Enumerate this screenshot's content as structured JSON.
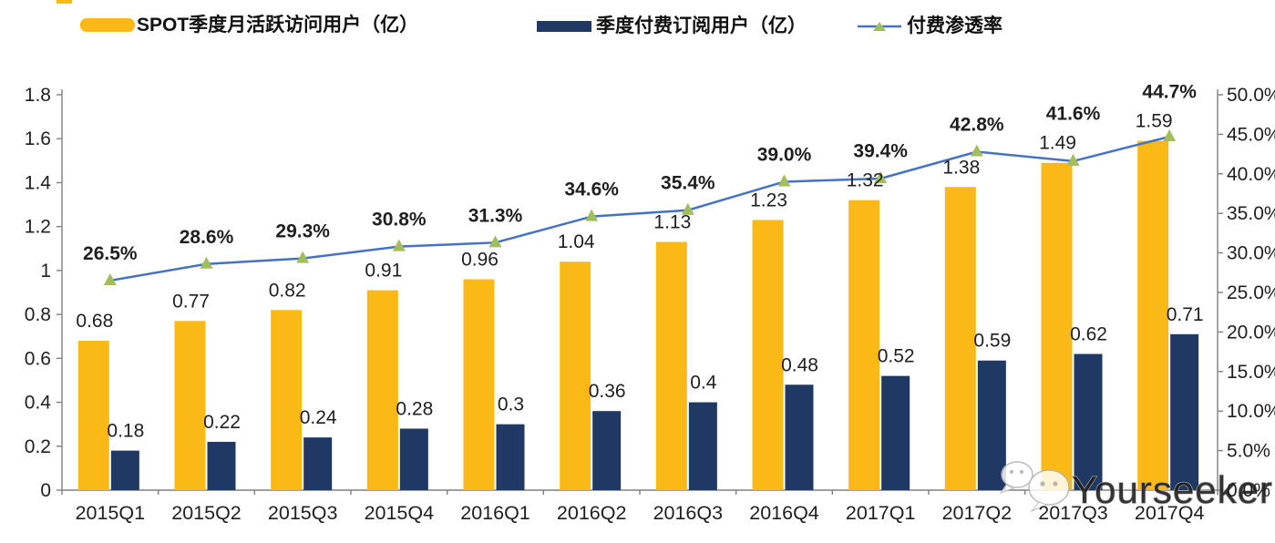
{
  "legend": [
    {
      "label": "SPOT季度月活跃访问用户（亿）",
      "swatch": "yellow-bar"
    },
    {
      "label": "季度付费订阅用户（亿）",
      "swatch": "navy-bar"
    },
    {
      "label": "付费渗透率",
      "swatch": "line-with-triangle-marker"
    }
  ],
  "colors": {
    "mau": "#FBB918",
    "paid": "#1F3864",
    "line": "#4472C4",
    "marker": "#A2BE5B",
    "axis": "#808080",
    "text": "#1f1f1f"
  },
  "chart_data": {
    "type": "bar",
    "subtype": "grouped-bars-with-line-combo",
    "title": "",
    "xlabel": "",
    "ylabel_left": "",
    "ylabel_right": "",
    "grid": false,
    "legend_position": "top",
    "categories": [
      "2015Q1",
      "2015Q2",
      "2015Q3",
      "2015Q4",
      "2016Q1",
      "2016Q2",
      "2016Q3",
      "2016Q4",
      "2017Q1",
      "2017Q2",
      "2017Q3",
      "2017Q4"
    ],
    "series": [
      {
        "name": "SPOT季度月活跃访问用户（亿）",
        "type": "bar",
        "axis": "left",
        "color": "#FBB918",
        "values": [
          0.68,
          0.77,
          0.82,
          0.91,
          0.96,
          1.04,
          1.13,
          1.23,
          1.32,
          1.38,
          1.49,
          1.59
        ],
        "labels": [
          "0.68",
          "0.77",
          "0.82",
          "0.91",
          "0.96",
          "1.04",
          "1.13",
          "1.23",
          "1.32",
          "1.38",
          "1.49",
          "1.59"
        ]
      },
      {
        "name": "季度付费订阅用户（亿）",
        "type": "bar",
        "axis": "left",
        "color": "#1F3864",
        "values": [
          0.18,
          0.22,
          0.24,
          0.28,
          0.3,
          0.36,
          0.4,
          0.48,
          0.52,
          0.59,
          0.62,
          0.71
        ],
        "labels": [
          "0.18",
          "0.22",
          "0.24",
          "0.28",
          "0.3",
          "0.36",
          "0.4",
          "0.48",
          "0.52",
          "0.59",
          "0.62",
          "0.71"
        ]
      },
      {
        "name": "付费渗透率",
        "type": "line",
        "axis": "right",
        "line_color": "#4472C4",
        "marker": "triangle",
        "marker_color": "#A2BE5B",
        "values": [
          26.5,
          28.6,
          29.3,
          30.8,
          31.3,
          34.6,
          35.4,
          39.0,
          39.4,
          42.8,
          41.6,
          44.7
        ],
        "labels": [
          "26.5%",
          "28.6%",
          "29.3%",
          "30.8%",
          "31.3%",
          "34.6%",
          "35.4%",
          "39.0%",
          "39.4%",
          "42.8%",
          "41.6%",
          "44.7%"
        ]
      }
    ],
    "left_axis": {
      "min": 0,
      "max": 1.8,
      "step": 0.2,
      "tick_labels": [
        "0",
        "0.2",
        "0.4",
        "0.6",
        "0.8",
        "1",
        "1.2",
        "1.4",
        "1.6",
        "1.8"
      ]
    },
    "right_axis": {
      "min": 0,
      "max": 50,
      "step": 5,
      "unit": "%",
      "tick_labels": [
        "0.0%",
        "5.0%",
        "10.0%",
        "15.0%",
        "20.0%",
        "25.0%",
        "30.0%",
        "35.0%",
        "40.0%",
        "45.0%",
        "50.0%"
      ]
    }
  },
  "watermark": {
    "text": "Yourseeker"
  }
}
